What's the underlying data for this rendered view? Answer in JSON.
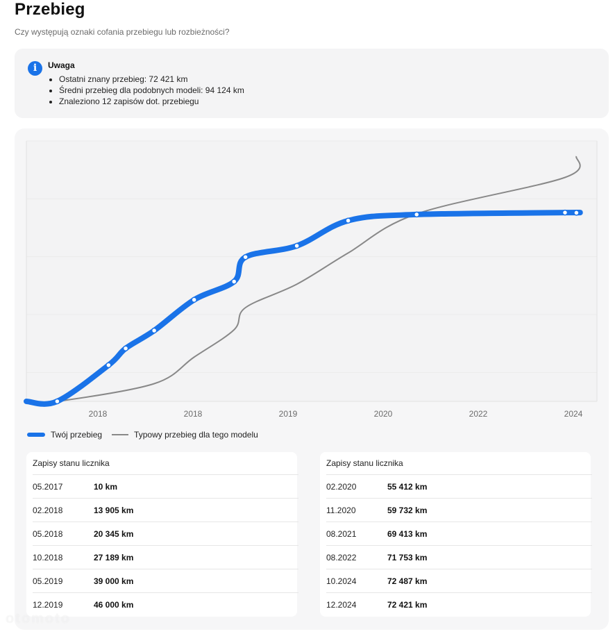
{
  "header": {
    "title": "Przebieg",
    "subtitle": "Czy występują oznaki cofania przebiegu lub rozbieżności?"
  },
  "alert": {
    "icon": "info-icon",
    "icon_glyph": "i",
    "title": "Uwaga",
    "items": [
      "Ostatni znany przebieg: 72 421 km",
      "Średni przebieg dla podobnych modeli: 94 124 km",
      "Znaleziono 12 zapisów dot. przebiegu"
    ]
  },
  "chart_data": {
    "type": "line",
    "colors": {
      "own": "#1a73e8",
      "typical": "#888888"
    },
    "x_tick_labels": [
      "2018",
      "2018",
      "2019",
      "2020",
      "2022",
      "2024"
    ],
    "grid": true,
    "legend_position": "bottom-left",
    "series": [
      {
        "name": "Twój przebieg",
        "points": [
          {
            "x": "05.2017",
            "y": 10
          },
          {
            "x": "02.2018",
            "y": 13905
          },
          {
            "x": "05.2018",
            "y": 20345
          },
          {
            "x": "10.2018",
            "y": 27189
          },
          {
            "x": "05.2019",
            "y": 39000
          },
          {
            "x": "12.2019",
            "y": 46000
          },
          {
            "x": "02.2020",
            "y": 55412
          },
          {
            "x": "11.2020",
            "y": 59732
          },
          {
            "x": "08.2021",
            "y": 69413
          },
          {
            "x": "08.2022",
            "y": 71753
          },
          {
            "x": "10.2024",
            "y": 72487
          },
          {
            "x": "12.2024",
            "y": 72421
          }
        ]
      },
      {
        "name": "Typowy przebieg dla tego modelu",
        "points": [
          {
            "x": "05.2017",
            "y": 0
          },
          {
            "x": "10.2018",
            "y": 6800
          },
          {
            "x": "05.2019",
            "y": 17000
          },
          {
            "x": "12.2019",
            "y": 27500
          },
          {
            "x": "02.2020",
            "y": 36000
          },
          {
            "x": "11.2020",
            "y": 45000
          },
          {
            "x": "08.2021",
            "y": 57000
          },
          {
            "x": "08.2022",
            "y": 72000
          },
          {
            "x": "10.2024",
            "y": 86000
          },
          {
            "x": "12.2024",
            "y": 94124
          }
        ]
      }
    ]
  },
  "legend": {
    "own_label": "Twój przebieg",
    "typical_label": "Typowy przebieg dla tego modelu"
  },
  "tables": [
    {
      "title": "Zapisy stanu licznika",
      "rows": [
        {
          "date": "05.2017",
          "value": "10 km"
        },
        {
          "date": "02.2018",
          "value": "13 905 km"
        },
        {
          "date": "05.2018",
          "value": "20 345 km"
        },
        {
          "date": "10.2018",
          "value": "27 189 km"
        },
        {
          "date": "05.2019",
          "value": "39 000 km"
        },
        {
          "date": "12.2019",
          "value": "46 000 km"
        }
      ]
    },
    {
      "title": "Zapisy stanu licznika",
      "rows": [
        {
          "date": "02.2020",
          "value": "55 412 km"
        },
        {
          "date": "11.2020",
          "value": "59 732 km"
        },
        {
          "date": "08.2021",
          "value": "69 413 km"
        },
        {
          "date": "08.2022",
          "value": "71 753 km"
        },
        {
          "date": "10.2024",
          "value": "72 487 km"
        },
        {
          "date": "12.2024",
          "value": "72 421 km"
        }
      ]
    }
  ],
  "watermark": "otomoto"
}
